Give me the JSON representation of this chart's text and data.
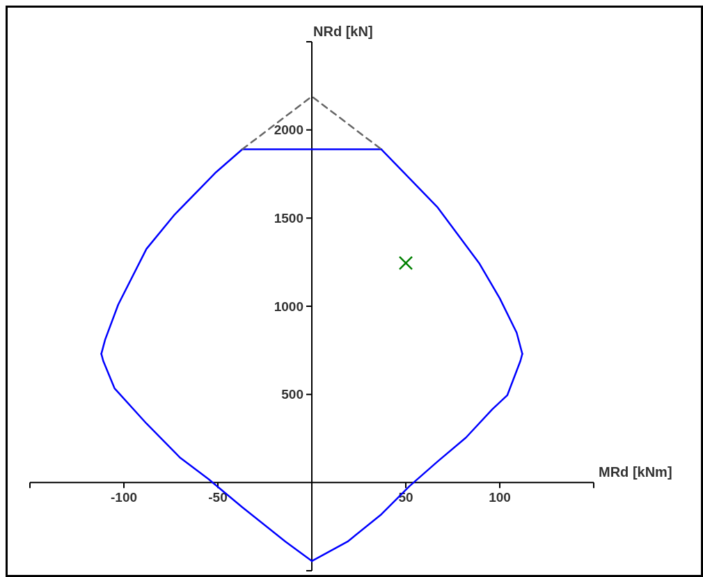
{
  "chart_data": {
    "type": "line",
    "xlabel": "MRd [kNm]",
    "ylabel": "NRd [kN]",
    "xlim": [
      -150,
      150
    ],
    "ylim": [
      -500,
      2500
    ],
    "xticks": [
      {
        "value": -150,
        "label": null
      },
      -100,
      -50,
      50,
      100,
      {
        "value": 150,
        "label": null
      }
    ],
    "yticks": [
      {
        "value": -500,
        "label": null
      },
      500,
      1000,
      1500,
      2000,
      {
        "value": 2500,
        "label": null
      }
    ],
    "marker": "none",
    "series": [
      {
        "color": "#0000ff",
        "x": [
          -37,
          37
        ],
        "values": [
          1890,
          1890
        ]
      },
      {
        "color": "#0000ff",
        "x": [
          -112,
          -110,
          -103,
          -88,
          -73,
          -51,
          -37
        ],
        "values": [
          730,
          810,
          1010,
          1325,
          1520,
          1760,
          1890
        ]
      },
      {
        "color": "#0000ff",
        "x": [
          -112,
          -111,
          -105,
          -88,
          -70,
          -55,
          -37,
          -14,
          0
        ],
        "values": [
          730,
          690,
          535,
          335,
          140,
          20,
          -140,
          -335,
          -445
        ]
      },
      {
        "color": "#0000ff",
        "x": [
          0,
          19,
          37,
          52,
          67,
          82,
          96,
          104,
          111,
          112
        ],
        "values": [
          -445,
          -335,
          -180,
          -20,
          120,
          255,
          415,
          495,
          690,
          730
        ]
      },
      {
        "color": "#0000ff",
        "x": [
          37,
          67,
          89,
          100,
          109,
          112
        ],
        "values": [
          1890,
          1560,
          1245,
          1045,
          850,
          730
        ]
      },
      {
        "color": "#666666",
        "line_style": "dashed",
        "x": [
          -37,
          0,
          37
        ],
        "values": [
          1890,
          2190,
          1890
        ]
      },
      {
        "type": "scatter",
        "marker": "cross",
        "color": "#008000",
        "x": [
          50
        ],
        "values": [
          1245
        ]
      }
    ]
  }
}
